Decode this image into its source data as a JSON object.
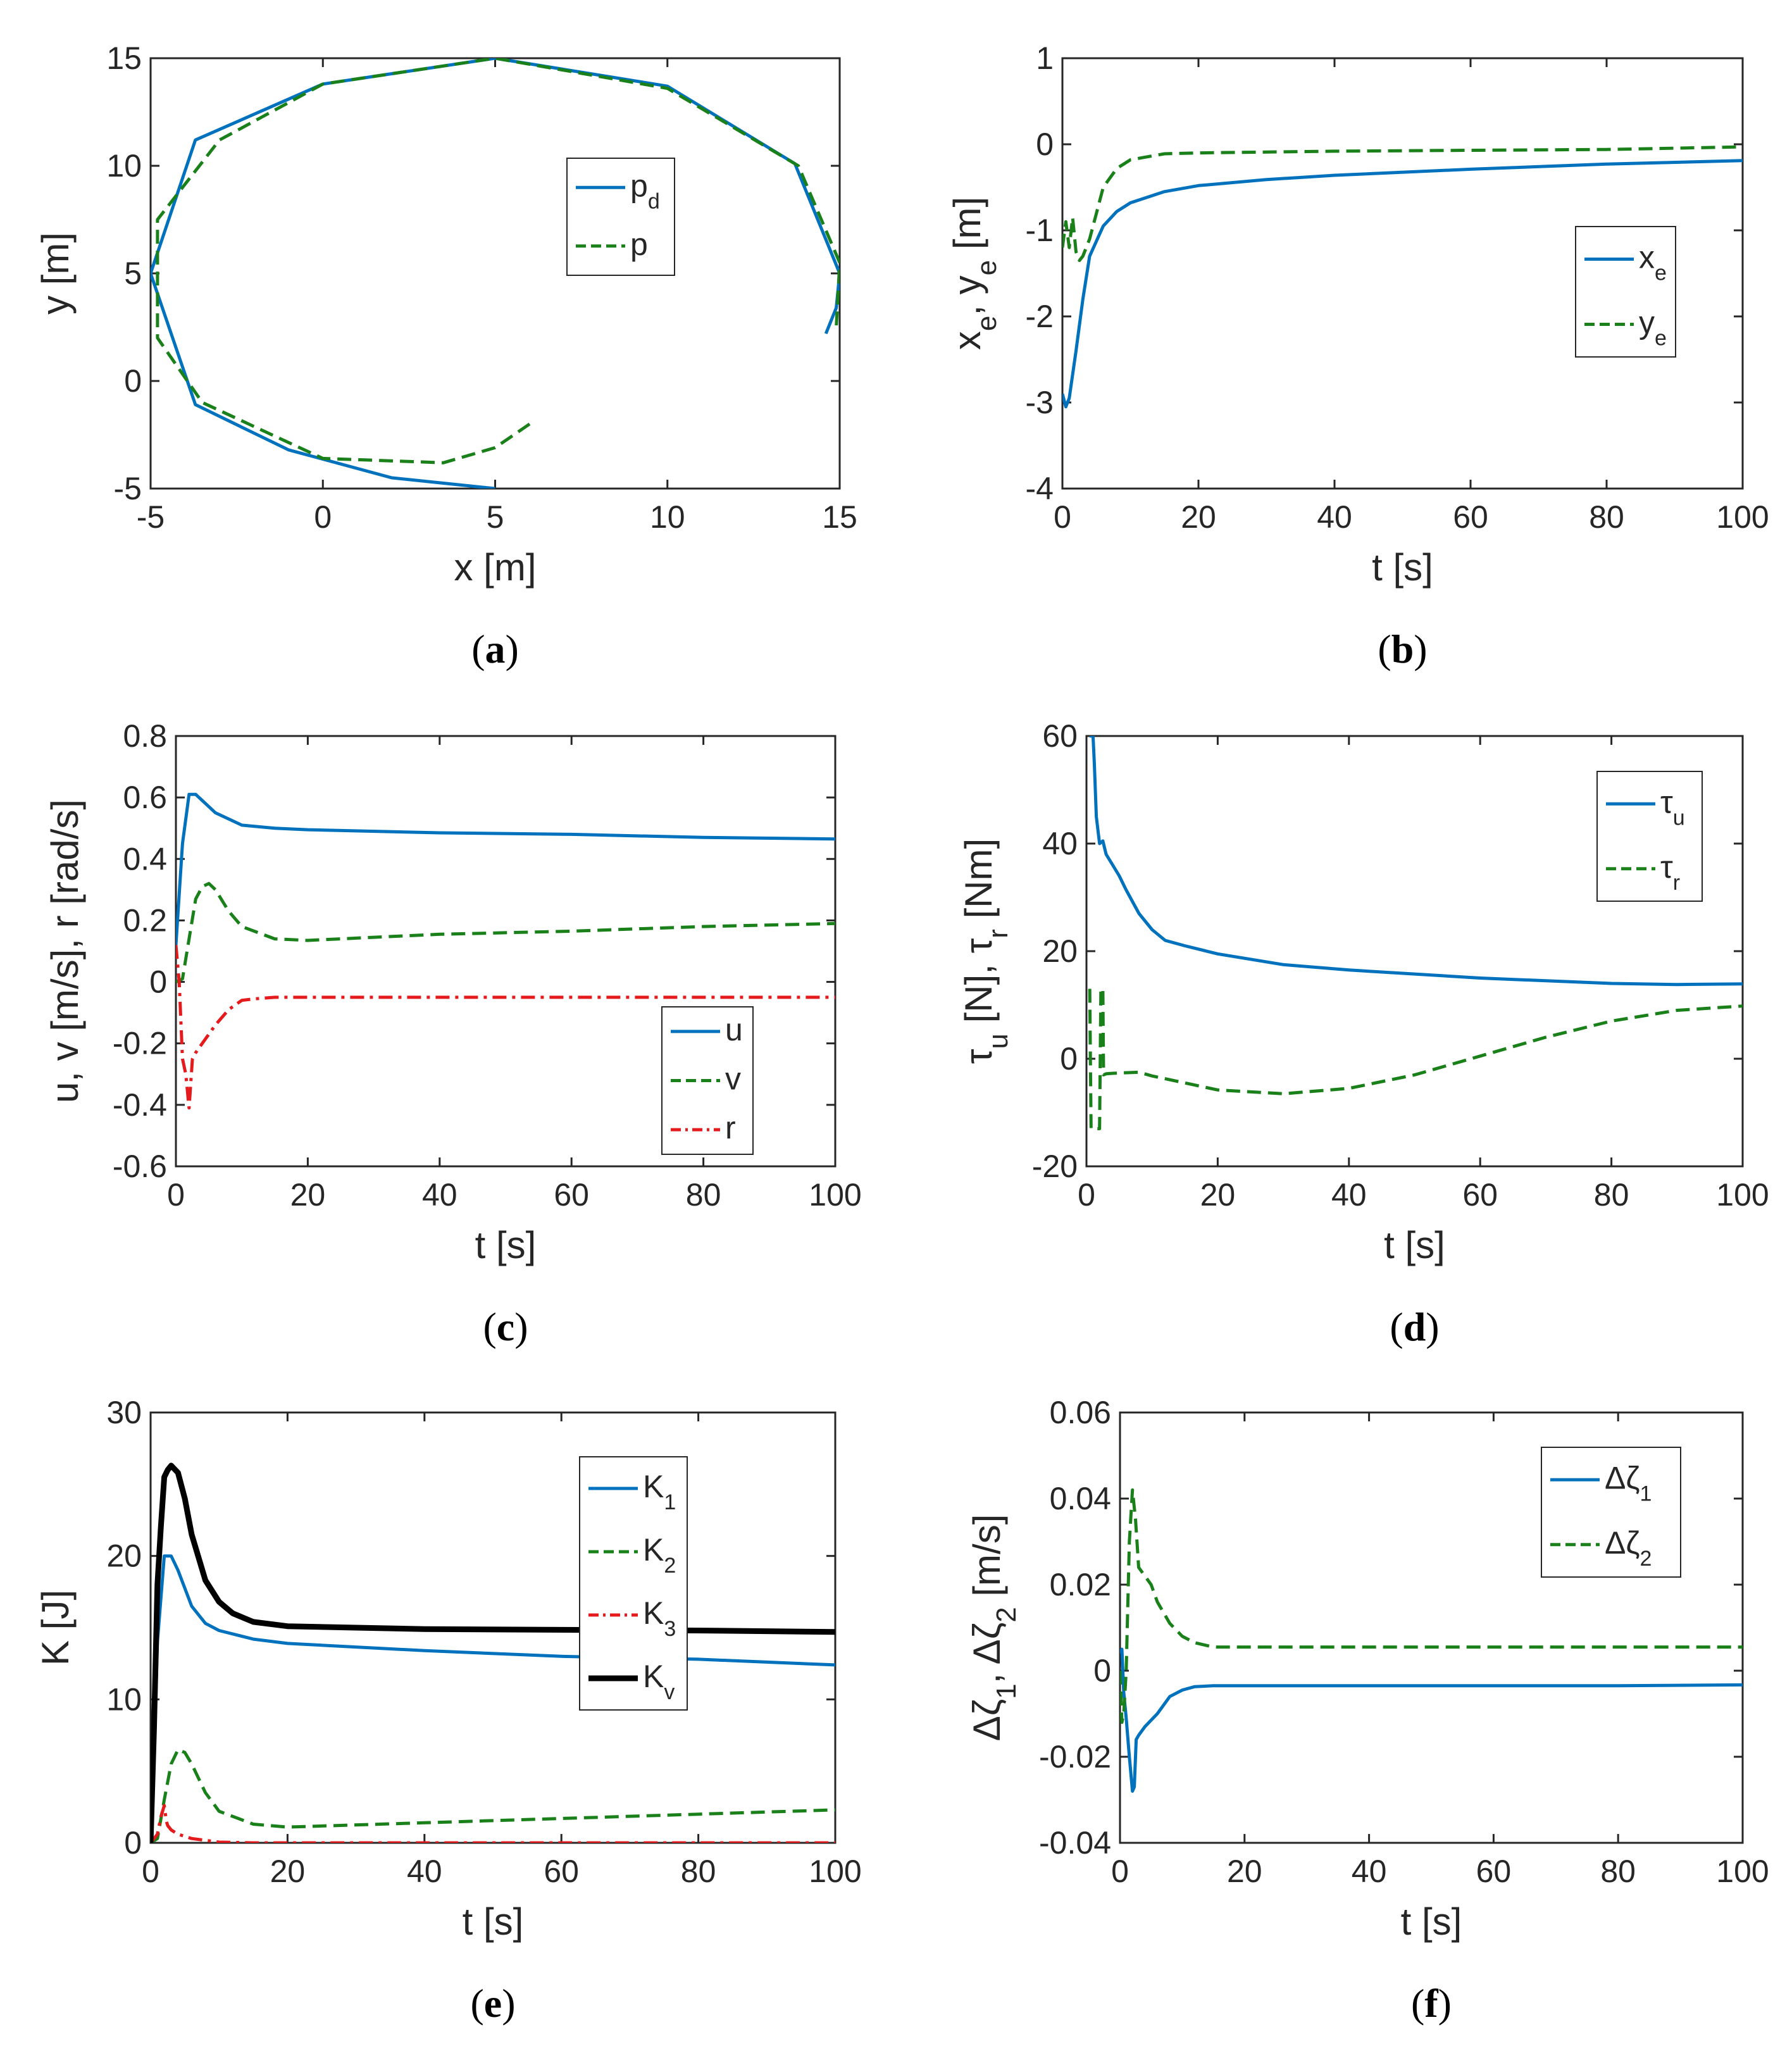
{
  "colors": {
    "blue": "#0072BD",
    "green": "#1A801A",
    "red": "#E41A1C",
    "black": "#000000",
    "axis": "#262626"
  },
  "chart_data": [
    {
      "id": "a",
      "type": "line",
      "caption_letter": "a",
      "xlabel": "x [m]",
      "ylabel": "y [m]",
      "xlim": [
        -5,
        15
      ],
      "ylim": [
        -5,
        15
      ],
      "xticks": [
        -5,
        0,
        5,
        10,
        15
      ],
      "yticks": [
        -5,
        0,
        5,
        10,
        15
      ],
      "xtick_labels": [
        "-5",
        "0",
        "5",
        "10",
        "15"
      ],
      "ytick_labels": [
        "-5",
        "0",
        "5",
        "10",
        "15"
      ],
      "legend_location": "upper-right-inner",
      "series": [
        {
          "name": "p",
          "sub": "d",
          "style": "solid",
          "color": "blue",
          "x": [
            5,
            2.0,
            -1.0,
            -3.7,
            -5.0,
            -3.7,
            0,
            5,
            10,
            13.7,
            15,
            14.9,
            14.6
          ],
          "y": [
            -5,
            -4.5,
            -3.2,
            -1.1,
            5,
            11.2,
            13.8,
            15,
            13.7,
            10.1,
            5,
            3.4,
            2.2
          ]
        },
        {
          "name": "p",
          "sub": "",
          "style": "dashed",
          "color": "green",
          "x": [
            6,
            5.0,
            3.5,
            0.0,
            -3.5,
            -4.8,
            -4.8,
            -3.0,
            0,
            5,
            10,
            13.8,
            15.0,
            14.9
          ],
          "y": [
            -2,
            -3.1,
            -3.8,
            -3.6,
            -1.0,
            2.0,
            7.5,
            11.2,
            13.8,
            15,
            13.6,
            10,
            5.5,
            2.5
          ]
        }
      ]
    },
    {
      "id": "b",
      "type": "line",
      "caption_letter": "b",
      "xlabel": "t [s]",
      "ylabel": "x_e, y_e [m]",
      "xlim": [
        0,
        100
      ],
      "ylim": [
        -4,
        1
      ],
      "xticks": [
        0,
        20,
        40,
        60,
        80,
        100
      ],
      "yticks": [
        -4,
        -3,
        -2,
        -1,
        0,
        1
      ],
      "xtick_labels": [
        "0",
        "20",
        "40",
        "60",
        "80",
        "100"
      ],
      "ytick_labels": [
        "-4",
        "-3",
        "-2",
        "-1",
        "0",
        "1"
      ],
      "legend_location": "middle-right-inner",
      "series": [
        {
          "name": "x",
          "sub": "e",
          "style": "solid",
          "color": "blue",
          "x": [
            0,
            0.5,
            1,
            2,
            3,
            4,
            6,
            8,
            10,
            15,
            20,
            30,
            40,
            60,
            80,
            100
          ],
          "y": [
            -2.9,
            -3.05,
            -2.95,
            -2.4,
            -1.8,
            -1.3,
            -0.95,
            -0.78,
            -0.68,
            -0.55,
            -0.48,
            -0.41,
            -0.36,
            -0.29,
            -0.23,
            -0.19
          ]
        },
        {
          "name": "y",
          "sub": "e",
          "style": "dashed",
          "color": "green",
          "x": [
            0,
            0.5,
            1,
            1.5,
            2,
            2.5,
            3,
            4,
            5,
            6,
            8,
            10,
            15,
            20,
            40,
            60,
            80,
            100
          ],
          "y": [
            -1.2,
            -0.9,
            -1.2,
            -0.85,
            -1.25,
            -1.35,
            -1.3,
            -1.1,
            -0.8,
            -0.5,
            -0.28,
            -0.18,
            -0.11,
            -0.1,
            -0.08,
            -0.07,
            -0.06,
            -0.03
          ]
        }
      ]
    },
    {
      "id": "c",
      "type": "line",
      "caption_letter": "c",
      "xlabel": "t [s]",
      "ylabel": "u, v [m/s], r [rad/s]",
      "xlim": [
        0,
        100
      ],
      "ylim": [
        -0.6,
        0.8
      ],
      "xticks": [
        0,
        20,
        40,
        60,
        80,
        100
      ],
      "yticks": [
        -0.6,
        -0.4,
        -0.2,
        0,
        0.2,
        0.4,
        0.6,
        0.8
      ],
      "xtick_labels": [
        "0",
        "20",
        "40",
        "60",
        "80",
        "100"
      ],
      "ytick_labels": [
        "-0.6",
        "-0.4",
        "-0.2",
        "0",
        "0.2",
        "0.4",
        "0.6",
        "0.8"
      ],
      "legend_location": "lower-right-inner",
      "series": [
        {
          "name": "u",
          "sub": "",
          "style": "solid",
          "color": "blue",
          "x": [
            0,
            1,
            2,
            3,
            4,
            6,
            10,
            15,
            20,
            40,
            60,
            80,
            100
          ],
          "y": [
            0.12,
            0.45,
            0.61,
            0.61,
            0.59,
            0.55,
            0.51,
            0.5,
            0.495,
            0.485,
            0.48,
            0.47,
            0.465
          ]
        },
        {
          "name": "v",
          "sub": "",
          "style": "dashed",
          "color": "green",
          "x": [
            0,
            1,
            2,
            3,
            4,
            5,
            6,
            8,
            10,
            15,
            20,
            30,
            40,
            60,
            80,
            100
          ],
          "y": [
            0.0,
            0.01,
            0.14,
            0.27,
            0.31,
            0.32,
            0.3,
            0.23,
            0.18,
            0.14,
            0.135,
            0.145,
            0.155,
            0.165,
            0.18,
            0.19
          ]
        },
        {
          "name": "r",
          "sub": "",
          "style": "dashdot",
          "color": "red",
          "x": [
            0,
            0.5,
            1,
            1.5,
            2,
            2.5,
            3,
            4,
            6,
            8,
            10,
            12,
            15,
            20,
            40,
            60,
            80,
            100
          ],
          "y": [
            0.12,
            0.0,
            -0.25,
            -0.3,
            -0.41,
            -0.25,
            -0.23,
            -0.2,
            -0.14,
            -0.09,
            -0.06,
            -0.055,
            -0.05,
            -0.05,
            -0.05,
            -0.05,
            -0.05,
            -0.05
          ]
        }
      ]
    },
    {
      "id": "d",
      "type": "line",
      "caption_letter": "d",
      "xlabel": "t [s]",
      "ylabel": "τ_u [N], τ_r [Nm]",
      "xlim": [
        0,
        100
      ],
      "ylim": [
        -20,
        60
      ],
      "xticks": [
        0,
        20,
        40,
        60,
        80,
        100
      ],
      "yticks": [
        -20,
        0,
        20,
        40,
        60
      ],
      "xtick_labels": [
        "0",
        "20",
        "40",
        "60",
        "80",
        "100"
      ],
      "ytick_labels": [
        "-20",
        "0",
        "20",
        "40",
        "60"
      ],
      "legend_location": "upper-right-inner",
      "series": [
        {
          "name": "τ",
          "sub": "u",
          "style": "solid",
          "color": "blue",
          "x": [
            0.5,
            1,
            1.2,
            1.5,
            2,
            2.5,
            3,
            4,
            5,
            6,
            8,
            10,
            12,
            15,
            20,
            30,
            40,
            60,
            80,
            90,
            100
          ],
          "y": [
            60,
            60,
            55,
            45,
            40,
            40.5,
            38,
            36,
            34,
            31.5,
            27,
            24,
            22,
            21,
            19.5,
            17.5,
            16.5,
            15,
            14,
            13.8,
            13.9
          ]
        },
        {
          "name": "τ",
          "sub": "r",
          "style": "dashed",
          "color": "green",
          "x": [
            0.5,
            0.6,
            0.7,
            2.0,
            2.1,
            2.2,
            2.5,
            2.6,
            3,
            4,
            6,
            8,
            10,
            20,
            30,
            40,
            50,
            60,
            70,
            80,
            90,
            100
          ],
          "y": [
            13,
            0,
            -13,
            -13,
            0,
            13,
            13,
            -3,
            -2.8,
            -2.7,
            -2.6,
            -2.5,
            -3.2,
            -5.8,
            -6.5,
            -5.5,
            -3,
            0.5,
            4,
            7,
            9,
            9.8
          ]
        }
      ]
    },
    {
      "id": "e",
      "type": "line",
      "caption_letter": "e",
      "xlabel": "t [s]",
      "ylabel": "K [J]",
      "xlim": [
        0,
        100
      ],
      "ylim": [
        0,
        30
      ],
      "xticks": [
        0,
        20,
        40,
        60,
        80,
        100
      ],
      "yticks": [
        0,
        10,
        20,
        30
      ],
      "xtick_labels": [
        "0",
        "20",
        "40",
        "60",
        "80",
        "100"
      ],
      "ytick_labels": [
        "0",
        "10",
        "20",
        "30"
      ],
      "legend_location": "upper-right-inner",
      "series": [
        {
          "name": "K",
          "sub": "1",
          "style": "solid",
          "color": "blue",
          "x": [
            0,
            0.5,
            1,
            2,
            2.5,
            3,
            4,
            6,
            8,
            10,
            15,
            20,
            40,
            60,
            80,
            100
          ],
          "y": [
            0,
            6,
            14,
            20,
            20,
            20,
            19,
            16.5,
            15.3,
            14.8,
            14.2,
            13.9,
            13.4,
            13.0,
            12.8,
            12.4
          ]
        },
        {
          "name": "K",
          "sub": "2",
          "style": "dashed",
          "color": "green",
          "x": [
            0,
            1,
            2,
            3,
            4,
            5,
            6,
            8,
            10,
            15,
            20,
            40,
            60,
            80,
            100
          ],
          "y": [
            0,
            0.3,
            3,
            5.5,
            6.5,
            6.3,
            5.5,
            3.5,
            2.2,
            1.3,
            1.1,
            1.4,
            1.7,
            2.0,
            2.3
          ]
        },
        {
          "name": "K",
          "sub": "3",
          "style": "dashdot",
          "color": "red",
          "x": [
            0,
            1,
            1.5,
            2,
            2.3,
            2.5,
            3,
            4,
            6,
            10,
            15,
            100
          ],
          "y": [
            0,
            0.6,
            1.8,
            2.6,
            1.5,
            1.2,
            0.9,
            0.6,
            0.3,
            0.05,
            0.0,
            0.0
          ]
        },
        {
          "name": "K",
          "sub": "v",
          "style": "solid",
          "color": "black",
          "bold": true,
          "x": [
            0,
            0.5,
            1,
            1.5,
            2,
            2.5,
            3,
            4,
            5,
            6,
            8,
            10,
            12,
            15,
            20,
            30,
            40,
            60,
            80,
            100
          ],
          "y": [
            0,
            8,
            18,
            22,
            25.5,
            26,
            26.3,
            25.8,
            24,
            21.5,
            18.3,
            16.8,
            16,
            15.4,
            15.1,
            15.0,
            14.9,
            14.85,
            14.8,
            14.7
          ]
        }
      ]
    },
    {
      "id": "f",
      "type": "line",
      "caption_letter": "f",
      "xlabel": "t [s]",
      "ylabel": "Δζ_1, Δζ_2 [m/s]",
      "xlim": [
        0,
        100
      ],
      "ylim": [
        -0.04,
        0.06
      ],
      "xticks": [
        0,
        20,
        40,
        60,
        80,
        100
      ],
      "yticks": [
        -0.04,
        -0.02,
        0,
        0.02,
        0.04,
        0.06
      ],
      "xtick_labels": [
        "0",
        "20",
        "40",
        "60",
        "80",
        "100"
      ],
      "ytick_labels": [
        "-0.04",
        "-0.02",
        "0",
        "0.02",
        "0.04",
        "0.06"
      ],
      "legend_location": "upper-right-inner",
      "series": [
        {
          "name": "Δζ",
          "sub": "1",
          "style": "solid",
          "color": "blue",
          "x": [
            0,
            0.3,
            0.6,
            1,
            1.5,
            2,
            2.3,
            2.6,
            3,
            4,
            6,
            8,
            10,
            12,
            15,
            20,
            40,
            60,
            80,
            100
          ],
          "y": [
            0.004,
            0.005,
            -0.005,
            -0.011,
            -0.02,
            -0.028,
            -0.027,
            -0.016,
            -0.015,
            -0.013,
            -0.01,
            -0.006,
            -0.0045,
            -0.0037,
            -0.0035,
            -0.0035,
            -0.0035,
            -0.0035,
            -0.0035,
            -0.0033
          ]
        },
        {
          "name": "Δζ",
          "sub": "2",
          "style": "dashed",
          "color": "green",
          "x": [
            0,
            0.3,
            0.6,
            1,
            1.5,
            2,
            2.5,
            3,
            4,
            5,
            6,
            8,
            10,
            12,
            15,
            20,
            40,
            60,
            80,
            100
          ],
          "y": [
            0,
            -0.012,
            -0.01,
            0.0,
            0.03,
            0.042,
            0.035,
            0.024,
            0.022,
            0.02,
            0.016,
            0.011,
            0.008,
            0.0065,
            0.0055,
            0.0055,
            0.0055,
            0.0055,
            0.0055,
            0.0055
          ]
        }
      ]
    }
  ]
}
